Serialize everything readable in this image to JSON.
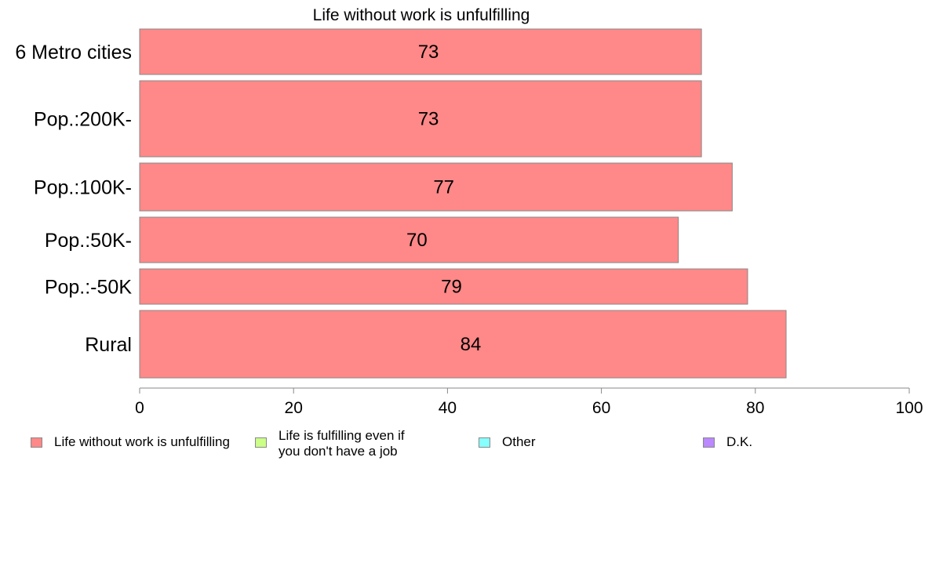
{
  "chart_data": {
    "type": "bar",
    "orientation": "horizontal",
    "title": "Life without work is unfulfilling",
    "categories": [
      "6 Metro cities",
      "Pop.:200K-",
      "Pop.:100K-",
      "Pop.:50K-",
      "Pop.:-50K",
      "Rural"
    ],
    "series": [
      {
        "name": "Life without work is unfulfilling",
        "values": [
          73,
          73,
          77,
          70,
          79,
          84
        ]
      }
    ],
    "value_labels": [
      "73",
      "73",
      "77",
      "70",
      "79",
      "84"
    ],
    "xlim": [
      0,
      100
    ],
    "xticks": [
      "0",
      "20",
      "40",
      "60",
      "80",
      "100"
    ],
    "xlabel": "",
    "ylabel": "",
    "grid": false,
    "legend_position": "bottom"
  },
  "legend": [
    {
      "label": "Life without work is unfulfilling",
      "color": "#ff8888"
    },
    {
      "label": "Life is fulfilling even if\nyou don't have a job",
      "color": "#ccff88"
    },
    {
      "label": "Other",
      "color": "#88ffff"
    },
    {
      "label": "D.K.",
      "color": "#bb88ff"
    }
  ],
  "colors": {
    "bar": "#ff8888",
    "bar_border": "#888888",
    "axis": "#888888"
  }
}
